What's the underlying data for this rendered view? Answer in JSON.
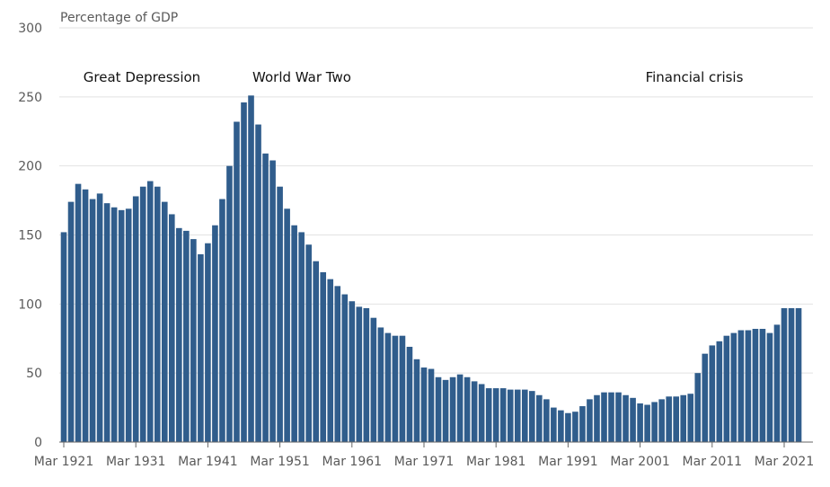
{
  "chart_data": {
    "type": "bar",
    "title": "Percentage of GDP",
    "annotations": [
      "Great Depression",
      "World War Two",
      "Financial crisis"
    ],
    "categories": [
      "Mar 1921",
      null,
      null,
      null,
      null,
      null,
      null,
      null,
      null,
      null,
      "Mar 1931",
      null,
      null,
      null,
      null,
      null,
      null,
      null,
      null,
      null,
      "Mar 1941",
      null,
      null,
      null,
      null,
      null,
      null,
      null,
      null,
      null,
      "Mar 1951",
      null,
      null,
      null,
      null,
      null,
      null,
      null,
      null,
      null,
      "Mar 1961",
      null,
      null,
      null,
      null,
      null,
      null,
      null,
      null,
      null,
      "Mar 1971",
      null,
      null,
      null,
      null,
      null,
      null,
      null,
      null,
      null,
      "Mar 1981",
      null,
      null,
      null,
      null,
      null,
      null,
      null,
      null,
      null,
      "Mar 1991",
      null,
      null,
      null,
      null,
      null,
      null,
      null,
      null,
      null,
      "Mar 2001",
      null,
      null,
      null,
      null,
      null,
      null,
      null,
      null,
      null,
      "Mar 2011",
      null,
      null,
      null,
      null,
      null,
      null,
      null,
      null,
      null,
      "Mar 2021",
      null,
      null
    ],
    "values": [
      152,
      174,
      187,
      183,
      176,
      180,
      173,
      170,
      168,
      169,
      178,
      185,
      189,
      185,
      174,
      165,
      155,
      153,
      147,
      136,
      144,
      157,
      176,
      200,
      232,
      246,
      251,
      230,
      209,
      204,
      185,
      169,
      157,
      152,
      143,
      131,
      123,
      118,
      113,
      107,
      102,
      98,
      97,
      90,
      83,
      79,
      77,
      77,
      69,
      60,
      54,
      53,
      47,
      45,
      47,
      49,
      47,
      44,
      42,
      39,
      39,
      39,
      38,
      38,
      38,
      37,
      34,
      31,
      25,
      23,
      21,
      22,
      26,
      31,
      34,
      36,
      36,
      36,
      34,
      32,
      28,
      27,
      29,
      31,
      33,
      33,
      34,
      35,
      50,
      64,
      70,
      73,
      77,
      79,
      81,
      81,
      82,
      82,
      79,
      85,
      97,
      97,
      97
    ],
    "color": "#305d8c",
    "ylim": [
      0,
      300
    ],
    "yticks": [
      0,
      50,
      100,
      150,
      200,
      250,
      300
    ],
    "grid": true
  }
}
